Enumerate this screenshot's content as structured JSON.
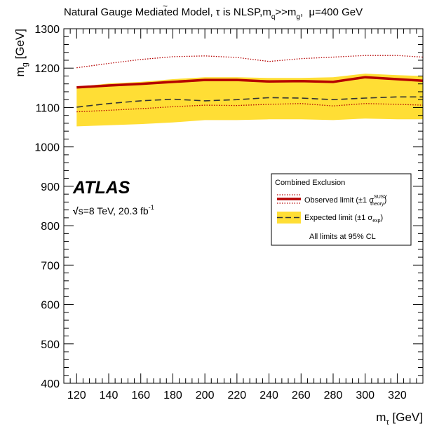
{
  "chart_data": {
    "type": "line",
    "title": {
      "prefix": "Natural Gauge Mediated Model, ",
      "tau_symbol": "τ",
      "tilde": "~",
      "mid": " is NLSP,m",
      "q_sub": "q",
      "gtgt": ">>m",
      "g_sub": "g",
      "suffix": ",  μ=400 GeV"
    },
    "xlabel": {
      "main": "m",
      "sub": "τ",
      "units": " [GeV]"
    },
    "ylabel": {
      "main": "m",
      "sub": "g",
      "units": " [GeV]"
    },
    "xlim": [
      112,
      336
    ],
    "ylim": [
      400,
      1300
    ],
    "x_ticks": [
      "120",
      "140",
      "160",
      "180",
      "200",
      "220",
      "240",
      "260",
      "280",
      "300",
      "320"
    ],
    "y_ticks": [
      "400",
      "500",
      "600",
      "700",
      "800",
      "900",
      "1000",
      "1100",
      "1200",
      "1300"
    ],
    "x": [
      120,
      140,
      160,
      180,
      200,
      220,
      240,
      260,
      280,
      300,
      320,
      336
    ],
    "observed": [
      1151,
      1156,
      1160,
      1165,
      1170,
      1170,
      1166,
      1167,
      1165,
      1177,
      1172,
      1168
    ],
    "observed_plus_theory": [
      1201,
      1212,
      1222,
      1229,
      1231,
      1227,
      1217,
      1224,
      1228,
      1232,
      1232,
      1228
    ],
    "observed_minus_theory": [
      1089,
      1093,
      1097,
      1102,
      1106,
      1105,
      1108,
      1110,
      1104,
      1110,
      1108,
      1106
    ],
    "expected": [
      1101,
      1110,
      1117,
      1121,
      1117,
      1120,
      1125,
      1124,
      1120,
      1124,
      1127,
      1127
    ],
    "expected_band_upper": [
      1152,
      1161,
      1165,
      1172,
      1177,
      1177,
      1175,
      1175,
      1177,
      1186,
      1182,
      1180
    ],
    "expected_band_lower": [
      1052,
      1055,
      1058,
      1062,
      1068,
      1068,
      1070,
      1070,
      1068,
      1072,
      1070,
      1070
    ],
    "colors": {
      "observed": "#b50000",
      "theory": "#b50000",
      "expected": "#333333",
      "band": "#ffde35"
    },
    "legend": {
      "placement": "right",
      "title": "Combined Exclusion",
      "observed": {
        "text": "Observed limit (±1 σ",
        "sup": "SUSY",
        "sub": "theory",
        "close": ")"
      },
      "expected": {
        "text": "Expected limit (±1 σ",
        "sub": "exp",
        "close": ")"
      },
      "note": "All limits at 95% CL"
    },
    "annotations": {
      "atlas": "ATLAS",
      "sqrt_symbol": "√",
      "energy": "s=8 TeV, 20.3 fb",
      "lumi_exp": "-1"
    }
  }
}
